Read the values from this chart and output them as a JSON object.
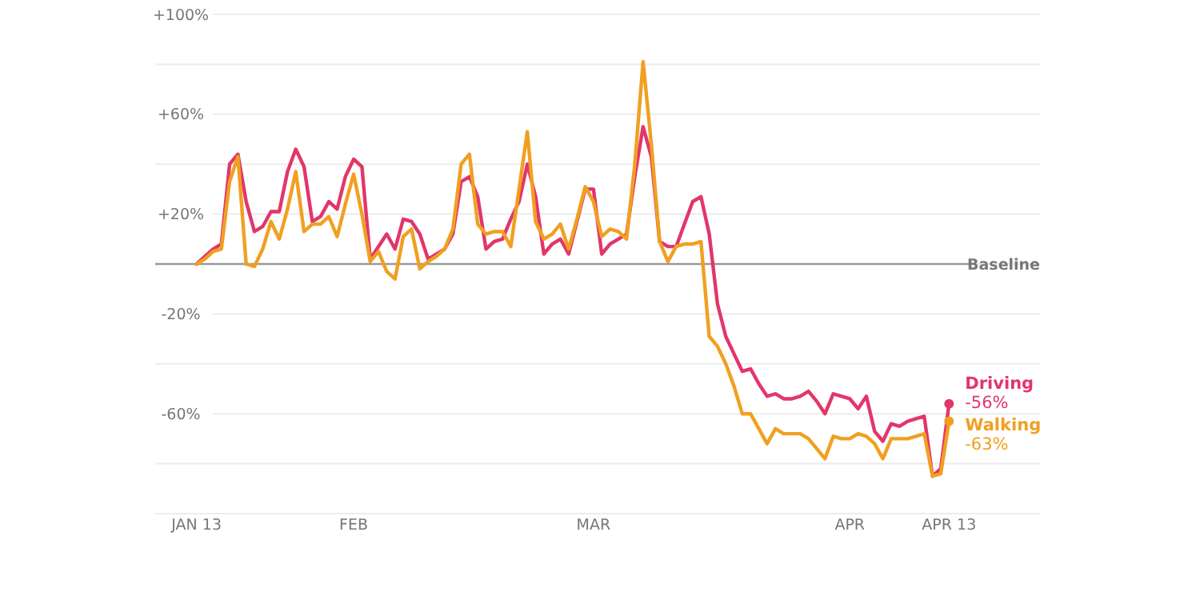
{
  "chart_data": {
    "type": "line",
    "x": [
      "--01-13",
      "--01-14",
      "--01-15",
      "--01-16",
      "--01-17",
      "--01-18",
      "--01-19",
      "--01-20",
      "--01-21",
      "--01-22",
      "--01-23",
      "--01-24",
      "--01-25",
      "--01-26",
      "--01-27",
      "--01-28",
      "--01-29",
      "--01-30",
      "--01-31",
      "--02-01",
      "--02-02",
      "--02-03",
      "--02-04",
      "--02-05",
      "--02-06",
      "--02-07",
      "--02-08",
      "--02-09",
      "--02-10",
      "--02-11",
      "--02-12",
      "--02-13",
      "--02-14",
      "--02-15",
      "--02-16",
      "--02-17",
      "--02-18",
      "--02-19",
      "--02-20",
      "--02-21",
      "--02-22",
      "--02-23",
      "--02-24",
      "--02-25",
      "--02-26",
      "--02-27",
      "--02-28",
      "--02-29",
      "--03-01",
      "--03-02",
      "--03-03",
      "--03-04",
      "--03-05",
      "--03-06",
      "--03-07",
      "--03-08",
      "--03-09",
      "--03-10",
      "--03-11",
      "--03-12",
      "--03-13",
      "--03-14",
      "--03-15",
      "--03-16",
      "--03-17",
      "--03-18",
      "--03-19",
      "--03-20",
      "--03-21",
      "--03-22",
      "--03-23",
      "--03-24",
      "--03-25",
      "--03-26",
      "--03-27",
      "--03-28",
      "--03-29",
      "--03-30",
      "--03-31",
      "--04-01",
      "--04-02",
      "--04-03",
      "--04-04",
      "--04-05",
      "--04-06",
      "--04-07",
      "--04-08",
      "--04-09",
      "--04-10",
      "--04-11",
      "--04-12",
      "--04-13"
    ],
    "series": [
      {
        "name": "Driving",
        "color": "#e2366a",
        "values": [
          0,
          3,
          6,
          8,
          40,
          44,
          25,
          13,
          15,
          21,
          21,
          37,
          46,
          39,
          17,
          19,
          25,
          22,
          35,
          42,
          39,
          2,
          7,
          12,
          6,
          18,
          17,
          12,
          2,
          4,
          6,
          12,
          33,
          35,
          27,
          6,
          9,
          10,
          18,
          25,
          40,
          27,
          4,
          8,
          10,
          4,
          17,
          30,
          30,
          4,
          8,
          10,
          12,
          35,
          55,
          43,
          9,
          7,
          7,
          16,
          25,
          27,
          12,
          -16,
          -29,
          -36,
          -43,
          -42,
          -48,
          -53,
          -52,
          -54,
          -54,
          -53,
          -51,
          -55,
          -60,
          -52,
          -53,
          -54,
          -58,
          -53,
          -67,
          -71,
          -64,
          -65,
          -63,
          -62,
          -61,
          -85,
          -82,
          -56
        ],
        "value_labels": [
          null,
          null,
          null,
          null,
          null,
          null,
          null,
          null,
          null,
          null,
          null,
          null,
          null,
          null,
          null,
          null,
          null,
          null,
          null,
          null,
          null,
          null,
          null,
          null,
          null,
          null,
          null,
          null,
          null,
          null,
          null,
          null,
          null,
          null,
          null,
          null,
          null,
          null,
          null,
          null,
          null,
          null,
          null,
          null,
          null,
          null,
          null,
          null,
          null,
          null,
          null,
          null,
          null,
          null,
          null,
          null,
          null,
          null,
          null,
          null,
          null,
          null,
          null,
          null,
          null,
          null,
          null,
          null,
          null,
          null,
          null,
          null,
          null,
          null,
          null,
          null,
          null,
          null,
          null,
          null,
          null,
          null,
          null,
          null,
          null,
          null,
          null,
          null,
          null,
          null,
          null,
          "-56%"
        ]
      },
      {
        "name": "Walking",
        "color": "#f0a020",
        "values": [
          0,
          2,
          5,
          6,
          33,
          43,
          0,
          -1,
          6,
          17,
          10,
          22,
          37,
          13,
          16,
          16,
          19,
          11,
          24,
          36,
          20,
          1,
          5,
          -3,
          -6,
          11,
          14,
          -2,
          1,
          3,
          6,
          14,
          40,
          44,
          16,
          12,
          13,
          13,
          7,
          30,
          53,
          17,
          10,
          12,
          16,
          6,
          18,
          31,
          25,
          11,
          14,
          13,
          10,
          40,
          81,
          48,
          9,
          1,
          7,
          8,
          8,
          9,
          -29,
          -33,
          -40,
          -49,
          -60,
          -60,
          -66,
          -72,
          -66,
          -68,
          -68,
          -68,
          -70,
          -74,
          -78,
          -69,
          -70,
          -70,
          -68,
          -69,
          -72,
          -78,
          -70,
          -70,
          -70,
          -69,
          -68,
          -85,
          -84,
          -63
        ],
        "value_labels": [
          null,
          null,
          null,
          null,
          null,
          null,
          null,
          null,
          null,
          null,
          null,
          null,
          null,
          null,
          null,
          null,
          null,
          null,
          null,
          null,
          null,
          null,
          null,
          null,
          null,
          null,
          null,
          null,
          null,
          null,
          null,
          null,
          null,
          null,
          null,
          null,
          null,
          null,
          null,
          null,
          null,
          null,
          null,
          null,
          null,
          null,
          null,
          null,
          null,
          null,
          null,
          null,
          null,
          null,
          null,
          null,
          null,
          null,
          null,
          null,
          null,
          null,
          null,
          null,
          null,
          null,
          null,
          null,
          null,
          null,
          null,
          null,
          null,
          null,
          null,
          null,
          null,
          null,
          null,
          null,
          null,
          null,
          null,
          null,
          null,
          null,
          null,
          null,
          null,
          null,
          null,
          "-63%"
        ]
      }
    ],
    "xlim": [
      "--01-08",
      "--04-24"
    ],
    "xticks": [
      {
        "value": "--01-13",
        "label": "JAN 13"
      },
      {
        "value": "--02-01",
        "label": "FEB"
      },
      {
        "value": "--03-01",
        "label": "MAR"
      },
      {
        "value": "--04-01",
        "label": "APR"
      },
      {
        "value": "--04-13",
        "label": "APR 13"
      }
    ],
    "ylim": [
      -100,
      100
    ],
    "yticks": [
      {
        "value": 100,
        "label": "+100%"
      },
      {
        "value": 80,
        "label": null
      },
      {
        "value": 60,
        "label": "+60%"
      },
      {
        "value": 40,
        "label": null
      },
      {
        "value": 20,
        "label": "+20%"
      },
      {
        "value": 0,
        "label": null
      },
      {
        "value": -20,
        "label": "-20%"
      },
      {
        "value": -40,
        "label": null
      },
      {
        "value": -60,
        "label": "-60%"
      },
      {
        "value": -80,
        "label": null
      },
      {
        "value": -100,
        "label": null
      }
    ],
    "ref_lines": [
      {
        "axis": "y",
        "value": 0,
        "label": "Baseline",
        "color": "#999999"
      }
    ],
    "grid": "y",
    "marker": "none",
    "line_style": "solid"
  }
}
